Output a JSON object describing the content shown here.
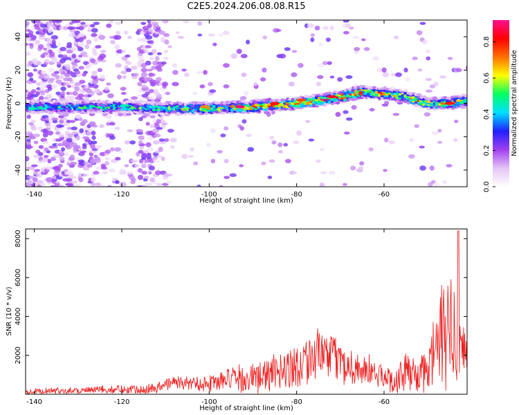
{
  "title": "C2E5.2024.206.08.08.R15",
  "chart_data": [
    {
      "type": "heatmap",
      "xlabel": "Height of straight line (km)",
      "ylabel": "Frequency (Hz)",
      "xlim": [
        -142,
        -41
      ],
      "ylim": [
        -50,
        50
      ],
      "x_ticks": [
        -140,
        -120,
        -100,
        -80,
        -60
      ],
      "y_ticks": [
        -40,
        -20,
        0,
        20,
        40
      ],
      "colorbar": {
        "label": "Normalized spectral amplitude",
        "range": [
          0,
          0.92
        ],
        "ticks": [
          0.0,
          0.2,
          0.4,
          0.6,
          0.8
        ],
        "colormap": [
          "#ffffff",
          "#e4c4f6",
          "#a040f0",
          "#2020ff",
          "#00e0ff",
          "#00ff60",
          "#ffff00",
          "#ff7000",
          "#ff0000",
          "#ff1090"
        ]
      },
      "ridge": {
        "x": [
          -142,
          -130,
          -120,
          -110,
          -100,
          -90,
          -80,
          -70,
          -65,
          -60,
          -55,
          -50,
          -45,
          -41
        ],
        "freq": [
          -2,
          -2,
          -2,
          -3,
          -3,
          -2,
          0,
          4,
          7,
          6,
          4,
          0,
          0,
          2
        ]
      }
    },
    {
      "type": "line",
      "xlabel": "Height of straight line (km)",
      "ylabel": "SNR (10 * v/v)",
      "xlim": [
        -142,
        -41
      ],
      "ylim": [
        0,
        8500
      ],
      "x_ticks": [
        -140,
        -120,
        -100,
        -80,
        -60
      ],
      "y_ticks": [
        2000,
        4000,
        6000,
        8000
      ],
      "line_color": "#ee2222",
      "envelope": {
        "x": [
          -142,
          -130,
          -120,
          -112,
          -109,
          -102,
          -97,
          -92,
          -88,
          -84,
          -81,
          -78,
          -76,
          -74,
          -72,
          -70,
          -67,
          -63,
          -60,
          -57,
          -55,
          -52,
          -50,
          -48,
          -46,
          -44,
          -42,
          -41
        ],
        "mean": [
          150,
          200,
          250,
          300,
          600,
          550,
          700,
          800,
          900,
          1200,
          1400,
          1800,
          1900,
          2100,
          1900,
          1600,
          1400,
          1150,
          800,
          800,
          1100,
          1000,
          1200,
          2500,
          3000,
          3100,
          2200,
          1800
        ],
        "amp": [
          150,
          180,
          250,
          300,
          350,
          400,
          600,
          800,
          900,
          1000,
          1300,
          1300,
          1400,
          1400,
          1300,
          1100,
          950,
          900,
          700,
          800,
          1000,
          900,
          1300,
          2500,
          3200,
          3000,
          1800,
          1600
        ]
      },
      "peak": {
        "x": -43,
        "y": 8400
      }
    }
  ]
}
